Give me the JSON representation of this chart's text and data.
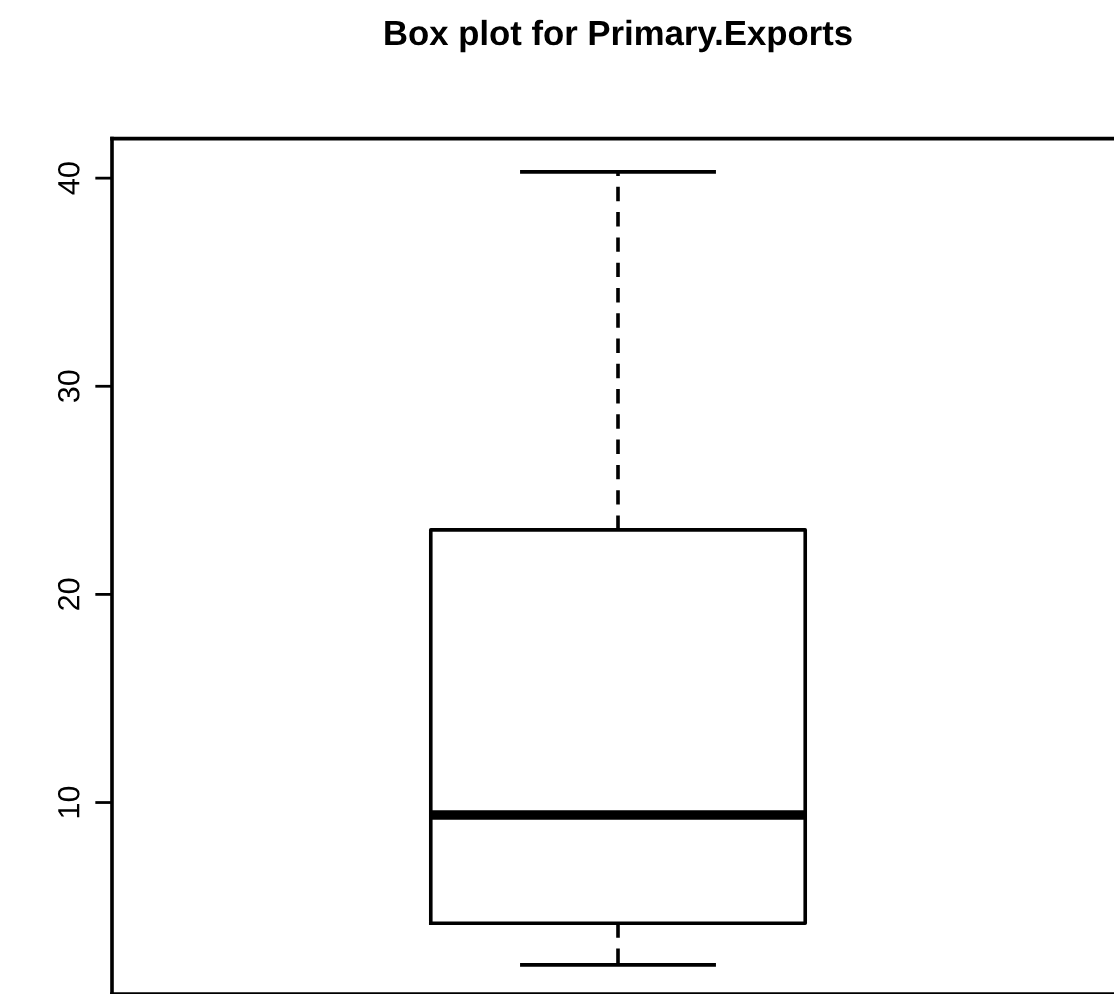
{
  "chart_data": {
    "type": "box",
    "title": "Box plot for Primary.Exports",
    "categories": [
      null
    ],
    "boxes": [
      {
        "low": 2.2,
        "q1": 4.2,
        "median": 9.4,
        "q3": 23.1,
        "high": 40.3
      }
    ],
    "ylim": [
      0.8,
      41.9
    ],
    "yticks": [
      10,
      20,
      30,
      40
    ]
  }
}
